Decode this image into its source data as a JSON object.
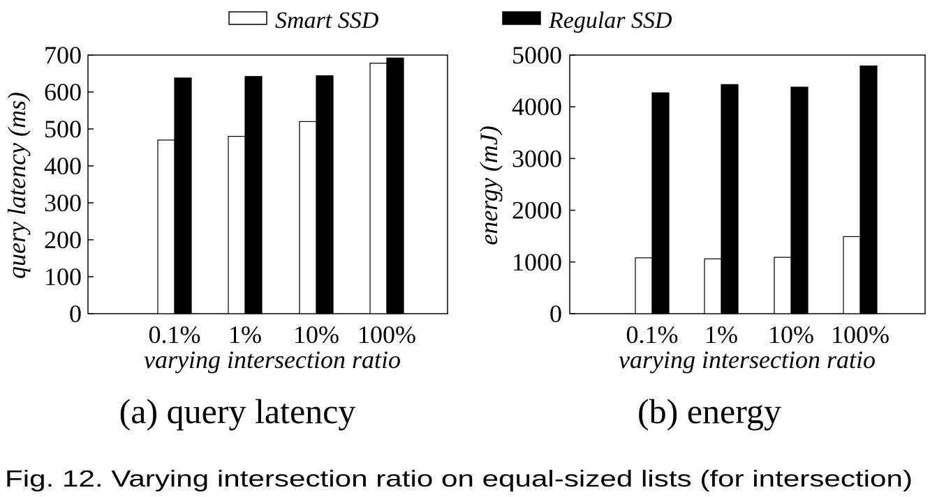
{
  "legend": [
    {
      "name": "Smart SSD",
      "fill": "#ffffff"
    },
    {
      "name": "Regular SSD",
      "fill": "#000000"
    }
  ],
  "chart_data": [
    {
      "type": "bar",
      "categories": [
        "0.1%",
        "1%",
        "10%",
        "100%"
      ],
      "series": [
        {
          "name": "Smart SSD",
          "values": [
            470,
            480,
            520,
            678
          ]
        },
        {
          "name": "Regular SSD",
          "values": [
            638,
            642,
            644,
            692
          ]
        }
      ],
      "xlabel": "varying intersection ratio",
      "ylabel": "query latency (ms)",
      "ylim": [
        0,
        700
      ],
      "yticks": [
        0,
        100,
        200,
        300,
        400,
        500,
        600,
        700
      ],
      "caption": "(a) query latency",
      "grid": false,
      "legend_position": "top"
    },
    {
      "type": "bar",
      "categories": [
        "0.1%",
        "1%",
        "10%",
        "100%"
      ],
      "series": [
        {
          "name": "Smart SSD",
          "values": [
            1080,
            1060,
            1090,
            1490
          ]
        },
        {
          "name": "Regular SSD",
          "values": [
            4270,
            4430,
            4380,
            4790
          ]
        }
      ],
      "xlabel": "varying intersection ratio",
      "ylabel": "energy (mJ)",
      "ylim": [
        0,
        5000
      ],
      "yticks": [
        0,
        1000,
        2000,
        3000,
        4000,
        5000
      ],
      "caption": "(b) energy",
      "grid": false,
      "legend_position": "top"
    }
  ],
  "figure_caption": "Fig. 12. Varying intersection ratio on equal-sized lists (for intersection)"
}
